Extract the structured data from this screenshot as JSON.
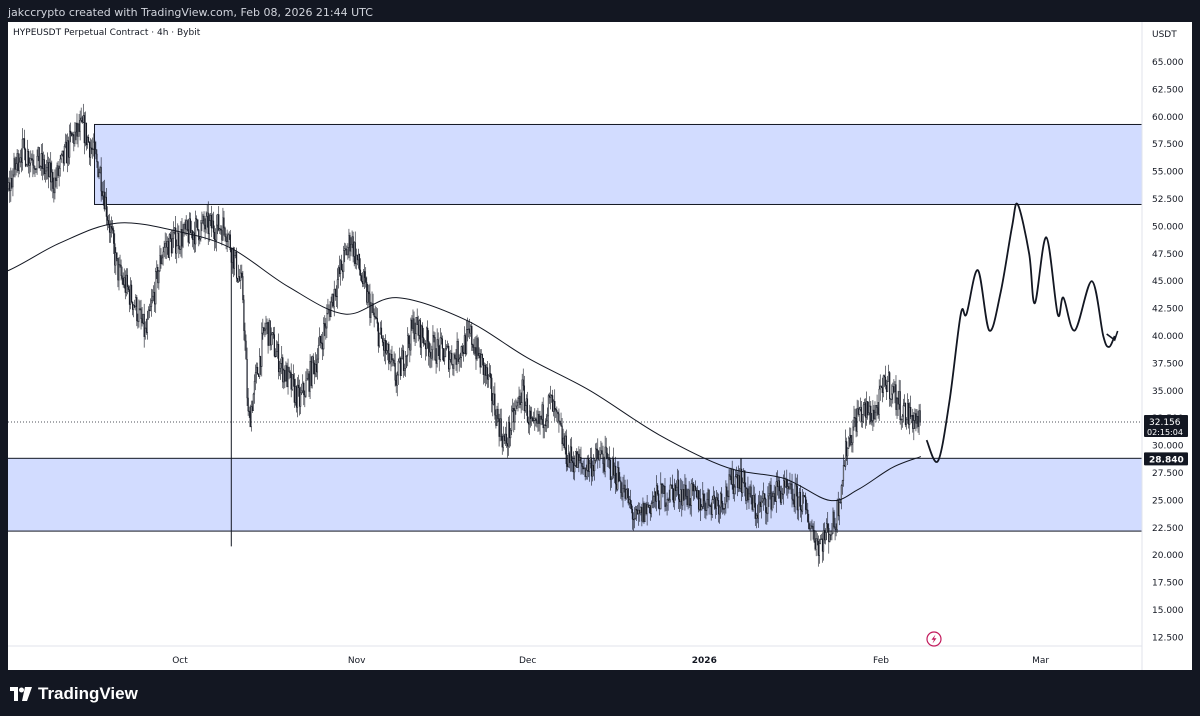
{
  "header": {
    "caption": "jakccrypto created with TradingView.com, Feb 08, 2026 21:44 UTC"
  },
  "footer": {
    "brand": "TradingView"
  },
  "colors": {
    "zone_fill": "#d2dcff",
    "zone_border": "#131722",
    "candles": "#131722",
    "ma": "#131722",
    "background": "#ffffff"
  },
  "chart_data": {
    "type": "candlestick",
    "title": "HYPEUSDT Perpetual Contract · 4h · Bybit",
    "currency": "USDT",
    "ylim": [
      10,
      67.5
    ],
    "y_ticks": [
      "12.500",
      "15.000",
      "17.500",
      "20.000",
      "22.500",
      "25.000",
      "27.500",
      "30.000",
      "32.500",
      "35.000",
      "37.500",
      "40.000",
      "42.500",
      "45.000",
      "47.500",
      "50.000",
      "52.500",
      "55.000",
      "57.500",
      "60.000",
      "62.500",
      "65.000"
    ],
    "x_ticks": [
      {
        "label": "Oct",
        "date": "2025-10-01"
      },
      {
        "label": "Nov",
        "date": "2025-11-01"
      },
      {
        "label": "Dec",
        "date": "2025-12-01"
      },
      {
        "label": "2026",
        "date": "2026-01-01"
      },
      {
        "label": "Feb",
        "date": "2026-02-01"
      },
      {
        "label": "Mar",
        "date": "2026-03-01"
      }
    ],
    "last_price": {
      "label": "32.156",
      "countdown": "02:15:04",
      "value": 32.156
    },
    "level_label": {
      "label": "28.840",
      "value": 28.84
    },
    "zones": [
      {
        "name": "supply-zone",
        "start": "2025-09-16",
        "low": 52.0,
        "high": 59.3
      },
      {
        "name": "demand-zone",
        "start": "2025-08-22",
        "low": 22.2,
        "high": 28.84
      }
    ],
    "price_path": [
      [
        "2025-08-22",
        45
      ],
      [
        "2025-08-26",
        47.5
      ],
      [
        "2025-08-30",
        50
      ],
      [
        "2025-09-03",
        57
      ],
      [
        "2025-09-06",
        56
      ],
      [
        "2025-09-09",
        54
      ],
      [
        "2025-09-12",
        58
      ],
      [
        "2025-09-14",
        59
      ],
      [
        "2025-09-17",
        55
      ],
      [
        "2025-09-20",
        46
      ],
      [
        "2025-09-23",
        43
      ],
      [
        "2025-09-25",
        40
      ],
      [
        "2025-09-28",
        48
      ],
      [
        "2025-10-01",
        49
      ],
      [
        "2025-10-05",
        50
      ],
      [
        "2025-10-09",
        50
      ],
      [
        "2025-10-12",
        44
      ],
      [
        "2025-10-13",
        32
      ],
      [
        "2025-10-16",
        41
      ],
      [
        "2025-10-19",
        37
      ],
      [
        "2025-10-22",
        34
      ],
      [
        "2025-10-25",
        38
      ],
      [
        "2025-10-28",
        44
      ],
      [
        "2025-10-31",
        49
      ],
      [
        "2025-11-02",
        45
      ],
      [
        "2025-11-05",
        40
      ],
      [
        "2025-11-08",
        36
      ],
      [
        "2025-11-11",
        41
      ],
      [
        "2025-11-14",
        39
      ],
      [
        "2025-11-18",
        38
      ],
      [
        "2025-11-21",
        40
      ],
      [
        "2025-11-24",
        36
      ],
      [
        "2025-11-27",
        30
      ],
      [
        "2025-11-30",
        35
      ],
      [
        "2025-12-02",
        31
      ],
      [
        "2025-12-05",
        34
      ],
      [
        "2025-12-08",
        29
      ],
      [
        "2025-12-11",
        28
      ],
      [
        "2025-12-14",
        29
      ],
      [
        "2025-12-17",
        27
      ],
      [
        "2025-12-20",
        23
      ],
      [
        "2025-12-23",
        25
      ],
      [
        "2025-12-27",
        26
      ],
      [
        "2025-12-31",
        25
      ],
      [
        "2026-01-04",
        25
      ],
      [
        "2026-01-07",
        27.5
      ],
      [
        "2026-01-10",
        24
      ],
      [
        "2026-01-14",
        26
      ],
      [
        "2026-01-18",
        25
      ],
      [
        "2026-01-21",
        21
      ],
      [
        "2026-01-24",
        23
      ],
      [
        "2026-01-26",
        30
      ],
      [
        "2026-01-28",
        33
      ],
      [
        "2026-01-31",
        33
      ],
      [
        "2026-02-02",
        36
      ],
      [
        "2026-02-05",
        33
      ],
      [
        "2026-02-08",
        32.156
      ]
    ],
    "spike_lows": [
      {
        "date": "2025-10-10",
        "low": 20.8
      }
    ],
    "moving_average": [
      [
        "2025-08-22",
        44
      ],
      [
        "2025-09-01",
        46
      ],
      [
        "2025-09-10",
        48.5
      ],
      [
        "2025-09-20",
        50.3
      ],
      [
        "2025-10-01",
        49.5
      ],
      [
        "2025-10-10",
        48
      ],
      [
        "2025-10-20",
        44.5
      ],
      [
        "2025-10-30",
        42
      ],
      [
        "2025-11-08",
        43.5
      ],
      [
        "2025-11-20",
        41.5
      ],
      [
        "2025-12-01",
        38
      ],
      [
        "2025-12-12",
        35
      ],
      [
        "2025-12-24",
        31
      ],
      [
        "2026-01-05",
        28
      ],
      [
        "2026-01-15",
        27
      ],
      [
        "2026-01-23",
        25
      ],
      [
        "2026-01-28",
        26
      ],
      [
        "2026-02-03",
        28
      ],
      [
        "2026-02-08",
        29
      ]
    ],
    "projection": [
      [
        "2026-02-09",
        30.5
      ],
      [
        "2026-02-11",
        28.6
      ],
      [
        "2026-02-13",
        34
      ],
      [
        "2026-02-15",
        42
      ],
      [
        "2026-02-16",
        42
      ],
      [
        "2026-02-18",
        46
      ],
      [
        "2026-02-20",
        40.5
      ],
      [
        "2026-02-22",
        44
      ],
      [
        "2026-02-24",
        50
      ],
      [
        "2026-02-25",
        52
      ],
      [
        "2026-02-27",
        47.5
      ],
      [
        "2026-02-28",
        43
      ],
      [
        "2026-03-02",
        49
      ],
      [
        "2026-03-04",
        42
      ],
      [
        "2026-03-05",
        43.5
      ],
      [
        "2026-03-07",
        40.5
      ],
      [
        "2026-03-10",
        45
      ],
      [
        "2026-03-12",
        40
      ],
      [
        "2026-03-13",
        39
      ],
      [
        "2026-03-14",
        40
      ]
    ]
  }
}
